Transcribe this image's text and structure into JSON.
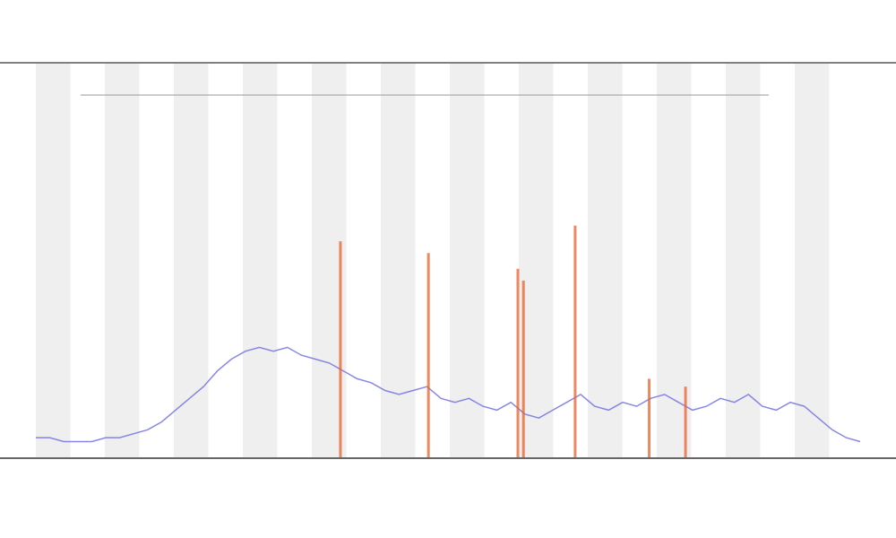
{
  "chart_data": [
    {
      "type": "line",
      "x": [
        0,
        1,
        2,
        3,
        4,
        5,
        6,
        7,
        8,
        9,
        10,
        11,
        12,
        13,
        14,
        15,
        16,
        17,
        18,
        19,
        20,
        21,
        22,
        23,
        24,
        25,
        26,
        27,
        28,
        29,
        30,
        31,
        32,
        33,
        34,
        35,
        36,
        37,
        38,
        39,
        40,
        41,
        42,
        43,
        44,
        45,
        46,
        47,
        48,
        49,
        50,
        51,
        52,
        53,
        54,
        55,
        56,
        57,
        58,
        59
      ],
      "xlim": [
        0,
        59
      ],
      "ylim": [
        0,
        100
      ],
      "series": [
        {
          "color": "#6a6ae0",
          "values": [
            5,
            5,
            4,
            4,
            4,
            5,
            5,
            6,
            7,
            9,
            12,
            15,
            18,
            22,
            25,
            27,
            28,
            27,
            28,
            26,
            25,
            24,
            22,
            20,
            19,
            17,
            16,
            17,
            18,
            15,
            14,
            15,
            13,
            12,
            14,
            11,
            10,
            12,
            14,
            16,
            13,
            12,
            14,
            13,
            15,
            16,
            14,
            12,
            13,
            15,
            14,
            16,
            13,
            12,
            14,
            13,
            10,
            7,
            5,
            4
          ]
        }
      ]
    },
    {
      "type": "spike",
      "x": [
        21.8,
        28.1,
        34.5,
        34.9,
        38.6,
        43.9,
        46.5
      ],
      "values": [
        55,
        52,
        48,
        45,
        59,
        20,
        18
      ],
      "color": "#e8602c",
      "xlim": [
        0,
        59
      ],
      "ylim": [
        0,
        100
      ]
    }
  ]
}
